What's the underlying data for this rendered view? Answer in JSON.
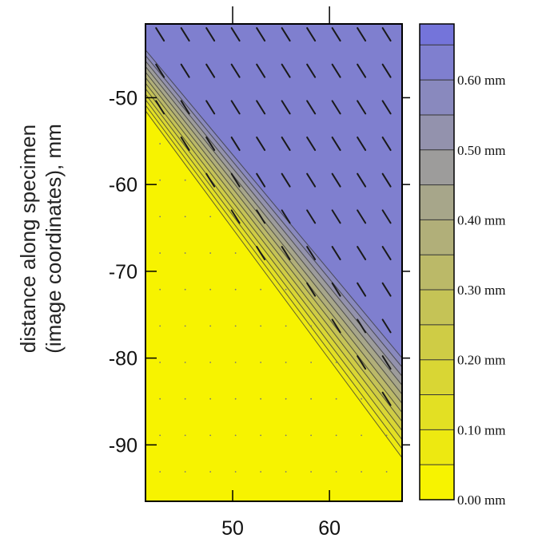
{
  "chart_data": {
    "type": "heatmap",
    "title": "",
    "xlabel": "",
    "ylabel_lines": [
      "distance along specimen",
      "(image coordinates), mm"
    ],
    "xlim": [
      41,
      67.5
    ],
    "ylim": [
      -96.5,
      -41.5
    ],
    "x_ticks": [
      50,
      60
    ],
    "y_ticks": [
      -50,
      -60,
      -70,
      -80,
      -90
    ],
    "colorbar": {
      "unit": "mm",
      "range": [
        0,
        0.68
      ],
      "labels": [
        "0.00 mm",
        "0.10 mm",
        "0.20 mm",
        "0.30 mm",
        "0.40 mm",
        "0.50 mm",
        "0.60 mm"
      ],
      "label_values": [
        0,
        0.1,
        0.2,
        0.3,
        0.4,
        0.5,
        0.6
      ],
      "levels": [
        0,
        0.05,
        0.1,
        0.15,
        0.2,
        0.25,
        0.3,
        0.35,
        0.4,
        0.45,
        0.5,
        0.55,
        0.6,
        0.65
      ],
      "color_low": "#f7f300",
      "color_high": "#7f7fcf",
      "color_top": "#7474da"
    },
    "field": {
      "description_low": 0.0,
      "description_high": 0.6,
      "transition_lines": [
        {
          "level": 0.05,
          "x": [
            41,
            67.5
          ],
          "y": [
            -51.5,
            -91.5
          ]
        },
        {
          "level": 0.55,
          "x": [
            41,
            67.5
          ],
          "y": [
            -44.5,
            -80.0
          ]
        }
      ]
    },
    "colors": {
      "plot_border": "#000000",
      "contour_line": "#333333",
      "arrow": "#1a1a1a"
    }
  }
}
